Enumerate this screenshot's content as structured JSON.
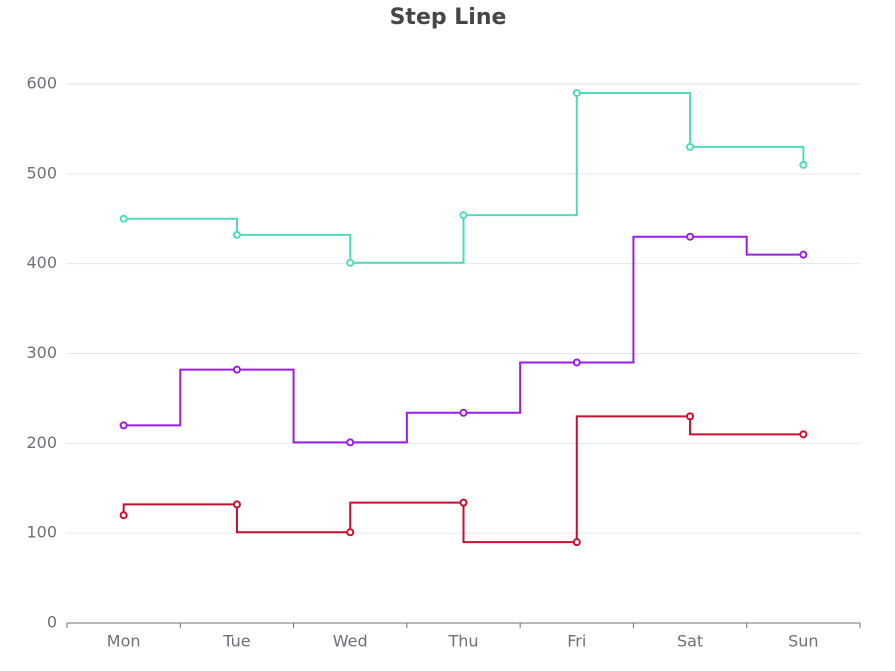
{
  "chart_data": {
    "type": "step-line",
    "title": "Step Line",
    "categories": [
      "Mon",
      "Tue",
      "Wed",
      "Thu",
      "Fri",
      "Sat",
      "Sun"
    ],
    "series": [
      {
        "color": "#c8102e",
        "step": "start",
        "values": [
          120,
          132,
          101,
          134,
          90,
          230,
          210
        ]
      },
      {
        "color": "#9a1ee6",
        "step": "middle",
        "values": [
          220,
          282,
          201,
          234,
          290,
          430,
          410
        ]
      },
      {
        "color": "#4fdcba",
        "step": "end",
        "values": [
          450,
          432,
          401,
          454,
          590,
          530,
          510
        ]
      }
    ],
    "ylim": [
      0,
      600
    ],
    "yticks": [
      0,
      100,
      200,
      300,
      400,
      500,
      600
    ],
    "grid": true
  }
}
